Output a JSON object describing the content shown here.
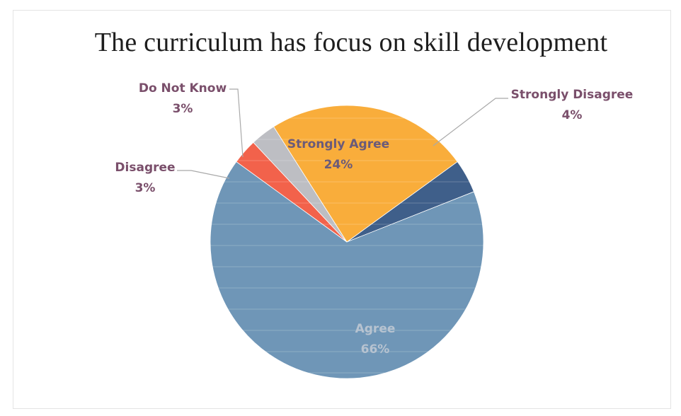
{
  "chart_data": {
    "type": "pie",
    "title": "The curriculum has focus on skill development",
    "slices": [
      {
        "label": "Strongly Disagree",
        "value": 4,
        "text": "4%",
        "color": "#3f5f8a"
      },
      {
        "label": "Agree",
        "value": 66,
        "text": "66%",
        "color": "#6f96b7"
      },
      {
        "label": "Disagree",
        "value": 3,
        "text": "3%",
        "color": "#f2624b"
      },
      {
        "label": "Do Not Know",
        "value": 3,
        "text": "3%",
        "color": "#bdbec3"
      },
      {
        "label": "Strongly Agree",
        "value": 24,
        "text": "24%",
        "color": "#f9ad3b"
      }
    ],
    "label_color": "#7a4f6b",
    "inner_label_colors": {
      "Strongly Agree": "#6a5a7a",
      "Agree": "#b7c3d0"
    }
  }
}
